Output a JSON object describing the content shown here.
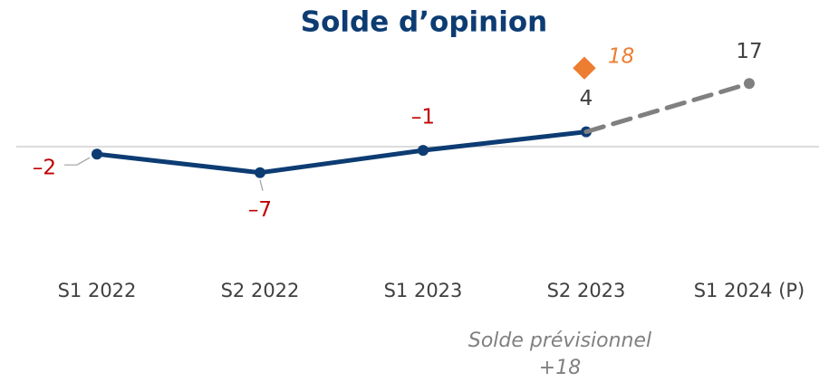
{
  "chart_data": {
    "type": "line",
    "title": "Solde d’opinion",
    "categories": [
      "S1 2022",
      "S2 2022",
      "S1 2023",
      "S2 2023",
      "S1 2024 (P)"
    ],
    "series": [
      {
        "color": "#0d3c73",
        "dashed": false,
        "values": [
          -2,
          -7,
          -1,
          4,
          null
        ],
        "value_labels": [
          "–2",
          "–7",
          "–1",
          "4",
          null
        ]
      },
      {
        "color": "#808080",
        "dashed": true,
        "values": [
          null,
          null,
          null,
          4,
          17
        ],
        "value_labels": [
          null,
          null,
          null,
          null,
          "17"
        ]
      }
    ],
    "forecast_marker": {
      "index": 3,
      "value": 18,
      "label": "18",
      "color": "#ed7d31"
    },
    "ylim": [
      -20,
      25
    ],
    "hline": 0,
    "annotation": {
      "lines": [
        "Solde prévisionnel",
        "+18"
      ]
    }
  }
}
